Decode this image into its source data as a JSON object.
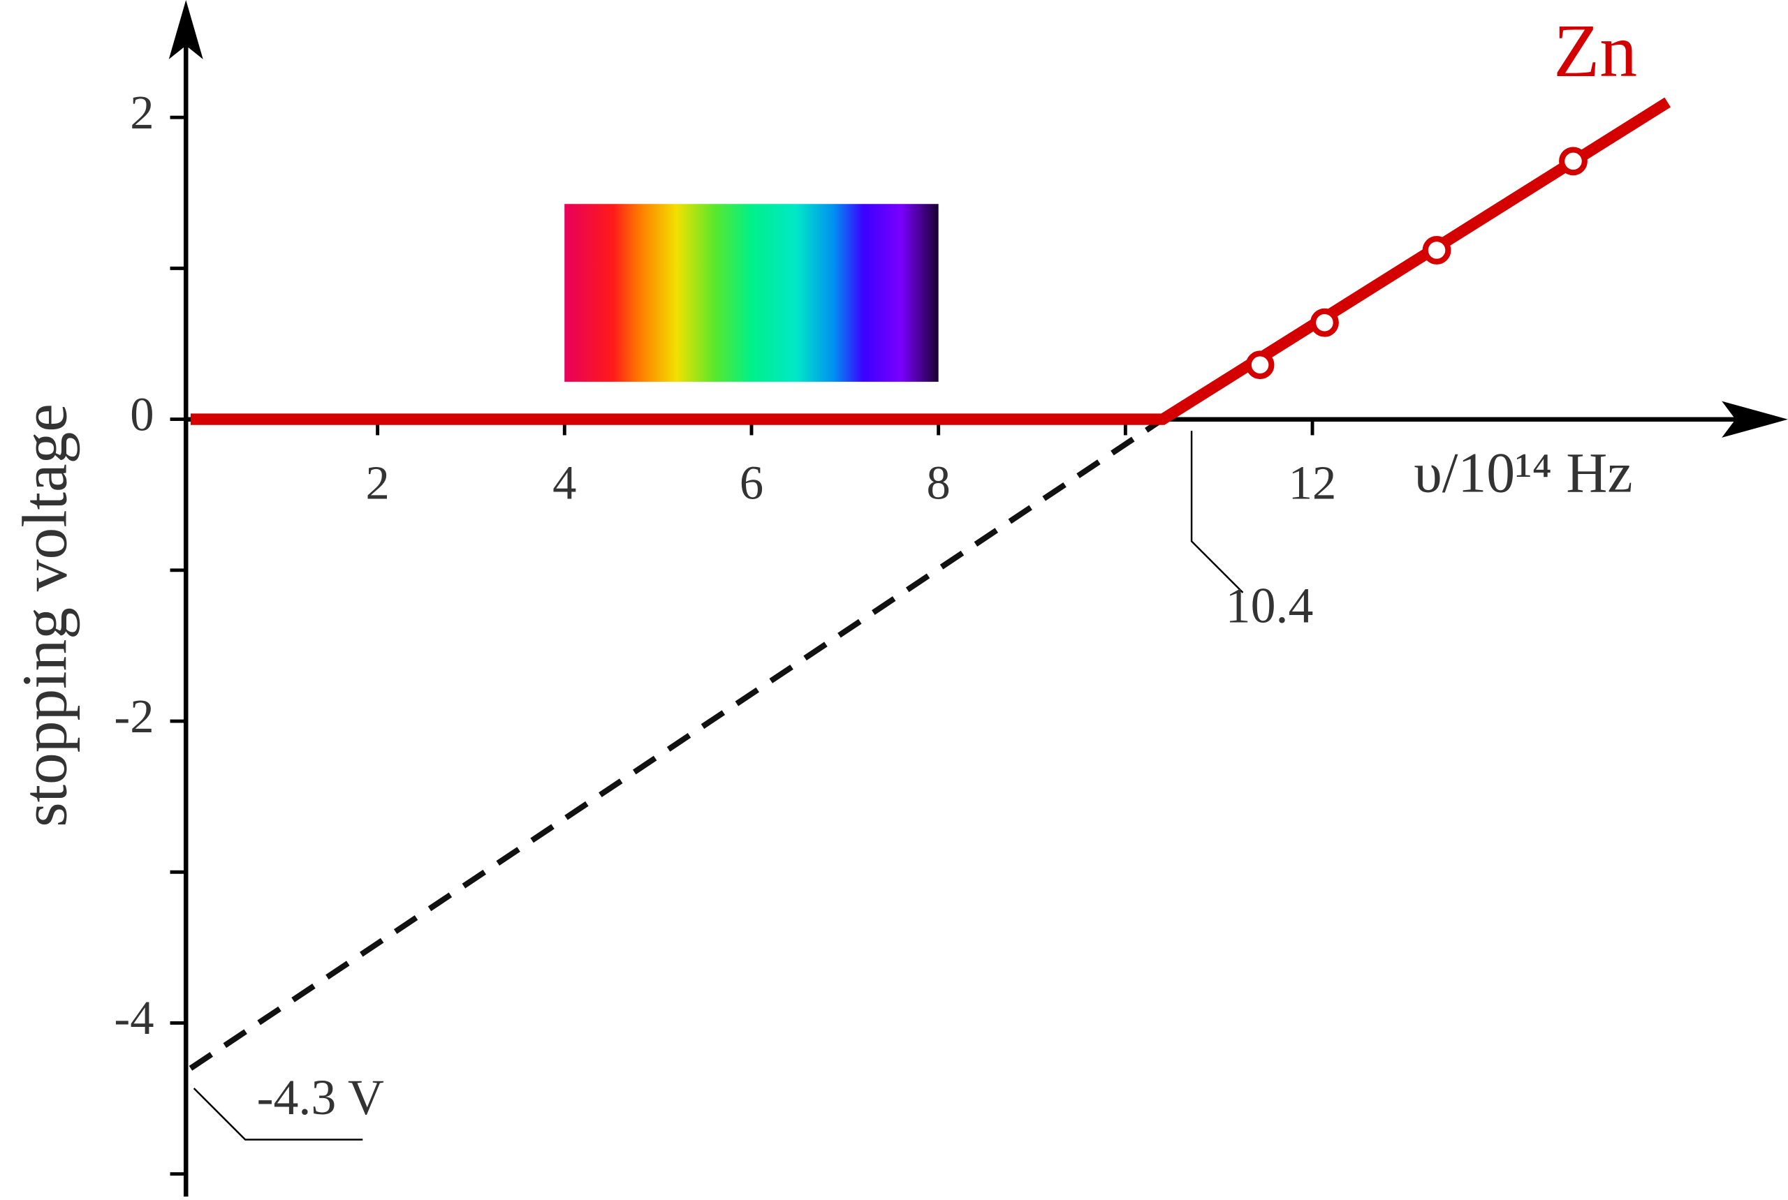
{
  "chart_data": {
    "type": "line",
    "y_label": "stopping voltage",
    "x_label": "υ/10¹⁴ Hz",
    "xlim": [
      -0.05,
      17.05
    ],
    "ylim": [
      -5.15,
      2.74
    ],
    "xticks": [
      2,
      4,
      6,
      8,
      {
        "value": 10,
        "label": null
      },
      12
    ],
    "yticks": [
      2,
      {
        "value": 1,
        "label": null
      },
      0,
      {
        "value": -1,
        "label": null
      },
      -2,
      {
        "value": -3,
        "label": null
      },
      -4,
      {
        "value": -5,
        "label": null
      }
    ],
    "series": [
      {
        "name": "Zn",
        "color": "#d40000",
        "x": [
          0,
          10.4,
          15.8
        ],
        "values": [
          0,
          0,
          2.1
        ]
      }
    ],
    "points": {
      "x": [
        11.44,
        12.13,
        13.33,
        14.79
      ],
      "values": [
        0.36,
        0.64,
        1.12,
        1.71
      ]
    },
    "extrapolation": {
      "color": "#111111",
      "x": [
        0,
        10.4
      ],
      "values": [
        -4.3,
        0
      ]
    },
    "annotations": [
      {
        "text": "-4.3 V",
        "x": 0,
        "y": -4.3
      },
      {
        "text": "10.4",
        "x": 10.4,
        "y": 0
      }
    ]
  }
}
